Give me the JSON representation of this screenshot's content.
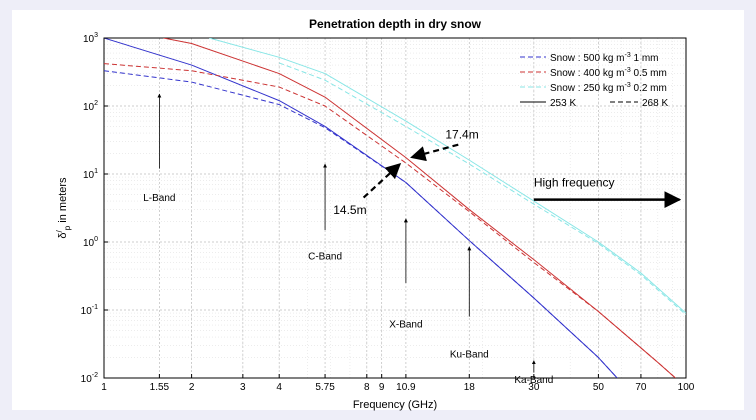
{
  "chart_data": {
    "type": "line",
    "title": "Penetration depth in dry snow",
    "xlabel": "Frequency (GHz)",
    "ylabel": {
      "main": "δ",
      "sup": "/",
      "sub": "p",
      "rest": " in meters"
    },
    "x_scale": "log",
    "y_scale": "log",
    "xlim": [
      1,
      100
    ],
    "ylim": [
      0.01,
      1000
    ],
    "grid": true,
    "legend_position": "top-right",
    "x_ticks": [
      1,
      1.55,
      2,
      3,
      4,
      5.75,
      8,
      9,
      10.9,
      18,
      30,
      50,
      70,
      100
    ],
    "x_tick_labels": [
      "1",
      "1.55",
      "2",
      "3",
      "4",
      "5.75",
      "8",
      "9",
      "10.9",
      "18",
      "30",
      "50",
      "70",
      "100"
    ],
    "y_ticks": [
      0.01,
      0.1,
      1,
      10,
      100,
      1000
    ],
    "y_tick_labels": [
      {
        "base": "10",
        "exp": "-2"
      },
      {
        "base": "10",
        "exp": "-1"
      },
      {
        "base": "10",
        "exp": "0"
      },
      {
        "base": "10",
        "exp": "1"
      },
      {
        "base": "10",
        "exp": "2"
      },
      {
        "base": "10",
        "exp": "3"
      }
    ],
    "legend": [
      {
        "text": "Snow : 500 kg m",
        "sup": "-3",
        "tail": " 1 mm",
        "color": "#3333cc",
        "dash": true
      },
      {
        "text": "Snow : 400 kg m",
        "sup": "-3",
        "tail": " 0.5 mm",
        "color": "#cc3333",
        "dash": true
      },
      {
        "text": "Snow : 250 kg m",
        "sup": "-3",
        "tail": " 0.2 mm",
        "color": "#88e6e6",
        "dash": true
      },
      {
        "text": "253 K",
        "color": "#000000",
        "dash": false,
        "pair": {
          "text": "268 K",
          "dash": true
        }
      }
    ],
    "series": [
      {
        "name": "Snow : 500 kg m-3 1 mm, 253 K",
        "color": "#3333cc",
        "dash": false,
        "x": [
          1,
          2,
          4,
          5.75,
          10.9,
          18,
          30,
          50,
          58
        ],
        "y": [
          1000,
          400,
          120,
          50,
          7.5,
          1.05,
          0.15,
          0.02,
          0.01
        ]
      },
      {
        "name": "Snow : 500 kg m-3 1 mm, 268 K",
        "color": "#3333cc",
        "dash": true,
        "x": [
          1,
          2,
          4,
          5.75,
          10.9,
          18,
          30,
          50,
          58
        ],
        "y": [
          330,
          225,
          105,
          48,
          7.5,
          1.05,
          0.15,
          0.02,
          0.01
        ]
      },
      {
        "name": "Snow : 400 kg m-3 0.5 mm, 253 K",
        "color": "#cc3333",
        "dash": false,
        "x": [
          1.6,
          2,
          4,
          5.75,
          10.9,
          18,
          30,
          50,
          80,
          92
        ],
        "y": [
          1000,
          830,
          300,
          135,
          17.4,
          3.0,
          0.55,
          0.095,
          0.017,
          0.01
        ]
      },
      {
        "name": "Snow : 400 kg m-3 0.5 mm, 268 K",
        "color": "#cc3333",
        "dash": true,
        "x": [
          1,
          2,
          4,
          5.75,
          10.9,
          18,
          30,
          50,
          80,
          92
        ],
        "y": [
          420,
          330,
          190,
          100,
          14.5,
          2.8,
          0.5,
          0.095,
          0.017,
          0.01
        ]
      },
      {
        "name": "Snow : 250 kg m-3 0.2 mm, 253 K",
        "color": "#88e6e6",
        "dash": false,
        "x": [
          2.3,
          4,
          5.75,
          10.9,
          18,
          30,
          50,
          70,
          100
        ],
        "y": [
          1000,
          520,
          300,
          60,
          16,
          4,
          1.0,
          0.35,
          0.09
        ]
      },
      {
        "name": "Snow : 250 kg m-3 0.2 mm, 268 K",
        "color": "#88e6e6",
        "dash": true,
        "x": [
          4,
          5.75,
          10.9,
          18,
          30,
          50,
          70,
          100
        ],
        "y": [
          430,
          240,
          50,
          14,
          3.6,
          0.95,
          0.33,
          0.085
        ]
      }
    ],
    "annotations": [
      {
        "text": "L-Band",
        "x": 1.55,
        "y": 4.0,
        "arrow_from": 12,
        "arrow_to": 150
      },
      {
        "text": "C-Band",
        "x": 5.75,
        "y": 0.55,
        "arrow_from": 1.5,
        "arrow_to": 14
      },
      {
        "text": "X-Band",
        "x": 10.9,
        "y": 0.055,
        "arrow_from": 0.25,
        "arrow_to": 2.2
      },
      {
        "text": "Ku-Band",
        "x": 18,
        "y": 0.02,
        "arrow_from": 0.08,
        "arrow_to": 0.85
      },
      {
        "text": "Ka-Band",
        "x": 30,
        "y": 0.0085,
        "arrow_from": 0.012,
        "arrow_to": 0.018
      },
      {
        "text": "17.4m",
        "x": 17.0,
        "y": 33
      },
      {
        "text": "14.5m",
        "x": 7.0,
        "y": 2.6
      },
      {
        "text": "High frequency",
        "x": 30,
        "y": 6.5
      }
    ]
  }
}
